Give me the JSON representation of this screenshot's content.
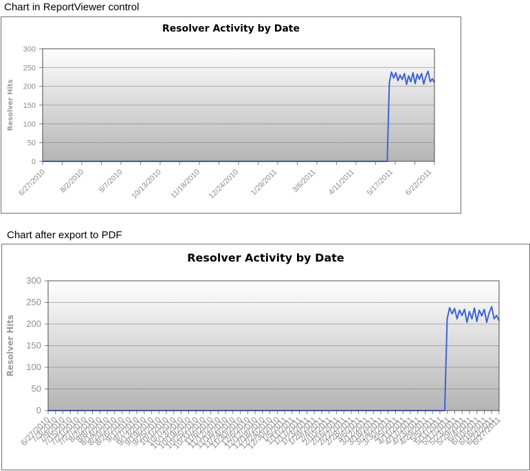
{
  "captions": {
    "top": "Chart in ReportViewer control",
    "bottom": "Chart after export to PDF"
  },
  "colors": {
    "series": "#3a62d6",
    "plot_gradient_top": "#ffffff",
    "plot_gradient_bottom": "#b4b4b4",
    "gridline": "#6e6e6e",
    "tick_text": "#8c8c8c"
  },
  "chart_data": [
    {
      "type": "line",
      "title": "Resolver Activity by Date",
      "ylabel": "Resolver Hits",
      "xlabel": "",
      "ylim": [
        0,
        300
      ],
      "yticks": [
        0,
        50,
        100,
        150,
        200,
        250,
        300
      ],
      "xlim": [
        "6/27/2010",
        "6/27/2011"
      ],
      "xtick_labels": [
        "6/27/2010",
        "8/2/2010",
        "9/7/2010",
        "10/13/2010",
        "11/18/2010",
        "12/24/2010",
        "1/29/2011",
        "3/6/2011",
        "4/11/2011",
        "5/17/2011",
        "6/22/2011"
      ],
      "grid": true,
      "legend": false,
      "series": [
        {
          "x": [
            "6/27/2010",
            "5/14/2011",
            "5/16/2011",
            "5/18/2011",
            "5/20/2011",
            "5/22/2011",
            "5/24/2011",
            "5/26/2011",
            "5/28/2011",
            "5/30/2011",
            "6/1/2011",
            "6/3/2011",
            "6/5/2011",
            "6/7/2011",
            "6/9/2011",
            "6/11/2011",
            "6/13/2011",
            "6/15/2011",
            "6/17/2011",
            "6/19/2011",
            "6/21/2011",
            "6/23/2011",
            "6/25/2011",
            "6/27/2011"
          ],
          "values": [
            0,
            0,
            210,
            238,
            222,
            236,
            215,
            230,
            218,
            234,
            205,
            228,
            212,
            236,
            207,
            232,
            219,
            234,
            206,
            226,
            240,
            212,
            220,
            210
          ]
        }
      ]
    },
    {
      "type": "line",
      "title": "Resolver Activity by Date",
      "ylabel": "Resolver Hits",
      "xlabel": "",
      "ylim": [
        0,
        300
      ],
      "yticks": [
        0,
        50,
        100,
        150,
        200,
        250,
        300
      ],
      "xlim": [
        "6/27/2010",
        "6/27/2011"
      ],
      "xtick_labels": [
        "6/27/2010",
        "7/3/2010",
        "7/9/2010",
        "7/15/2010",
        "7/21/2010",
        "7/27/2010",
        "8/2/2010",
        "8/8/2010",
        "8/14/2010",
        "8/20/2010",
        "8/26/2010",
        "9/1/2010",
        "9/7/2010",
        "9/13/2010",
        "9/19/2010",
        "9/25/2010",
        "10/1/2010",
        "10/7/2010",
        "10/13/2010",
        "10/19/2010",
        "10/25/2010",
        "10/31/2010",
        "11/6/2010",
        "11/12/2010",
        "11/18/2010",
        "11/24/2010",
        "11/30/2010",
        "12/6/2010",
        "12/12/2010",
        "12/18/2010",
        "12/24/2010",
        "12/30/2010",
        "1/5/2011",
        "1/11/2011",
        "1/17/2011",
        "1/23/2011",
        "1/29/2011",
        "2/4/2011",
        "2/10/2011",
        "2/16/2011",
        "2/22/2011",
        "2/28/2011",
        "3/6/2011",
        "3/12/2011",
        "3/18/2011",
        "3/24/2011",
        "3/30/2011",
        "4/5/2011",
        "4/11/2011",
        "4/17/2011",
        "4/23/2011",
        "4/29/2011",
        "5/5/2011",
        "5/11/2011",
        "5/17/2011",
        "5/23/2011",
        "5/29/2011",
        "6/4/2011",
        "6/10/2011",
        "6/16/2011",
        "6/22/2011",
        "6/27/2011"
      ],
      "grid": true,
      "legend": false,
      "series": [
        {
          "x": [
            "6/27/2010",
            "5/14/2011",
            "5/16/2011",
            "5/18/2011",
            "5/20/2011",
            "5/22/2011",
            "5/24/2011",
            "5/26/2011",
            "5/28/2011",
            "5/30/2011",
            "6/1/2011",
            "6/3/2011",
            "6/5/2011",
            "6/7/2011",
            "6/9/2011",
            "6/11/2011",
            "6/13/2011",
            "6/15/2011",
            "6/17/2011",
            "6/19/2011",
            "6/21/2011",
            "6/23/2011",
            "6/25/2011",
            "6/27/2011"
          ],
          "values": [
            0,
            0,
            212,
            238,
            224,
            236,
            212,
            232,
            220,
            234,
            204,
            229,
            212,
            237,
            206,
            232,
            219,
            234,
            204,
            226,
            240,
            212,
            220,
            208
          ]
        }
      ]
    }
  ]
}
